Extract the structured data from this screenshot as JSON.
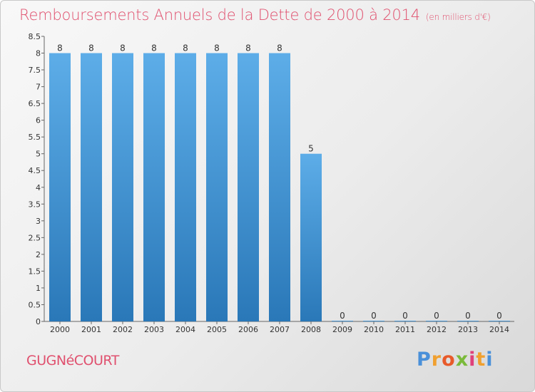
{
  "chart_data": {
    "type": "bar",
    "title": "Remboursements Annuels de la Dette de 2000 à 2014",
    "unit_note": "(en milliers d'€)",
    "categories": [
      "2000",
      "2001",
      "2002",
      "2003",
      "2004",
      "2005",
      "2006",
      "2007",
      "2008",
      "2009",
      "2010",
      "2011",
      "2012",
      "2013",
      "2014"
    ],
    "values": [
      8,
      8,
      8,
      8,
      8,
      8,
      8,
      8,
      5,
      0,
      0,
      0,
      0,
      0,
      0
    ],
    "data_labels": [
      "8",
      "8",
      "8",
      "8",
      "8",
      "8",
      "8",
      "8",
      "5",
      "0",
      "0",
      "0",
      "0",
      "0",
      "0"
    ],
    "y_ticks": [
      "0",
      "0.5",
      "1",
      "1.5",
      "2",
      "2.5",
      "3",
      "3.5",
      "4",
      "4.5",
      "5",
      "5.5",
      "6",
      "6.5",
      "7",
      "7.5",
      "8",
      "8.5"
    ],
    "ylim": [
      0,
      8.5
    ],
    "xlabel": "",
    "ylabel": "",
    "grid": false,
    "colors": {
      "bar_light": "#5dade8",
      "bar_dark": "#2a78b8",
      "title": "#e0506e"
    }
  },
  "commune": "GUGNéCOURT",
  "logo": {
    "letters": [
      "P",
      "r",
      "o",
      "x",
      "i",
      "t",
      "i"
    ],
    "colors": [
      "#4a90d9",
      "#f0a030",
      "#e85a2a",
      "#7aba3a",
      "#e0407a",
      "#f0a030",
      "#4a90d9"
    ]
  }
}
